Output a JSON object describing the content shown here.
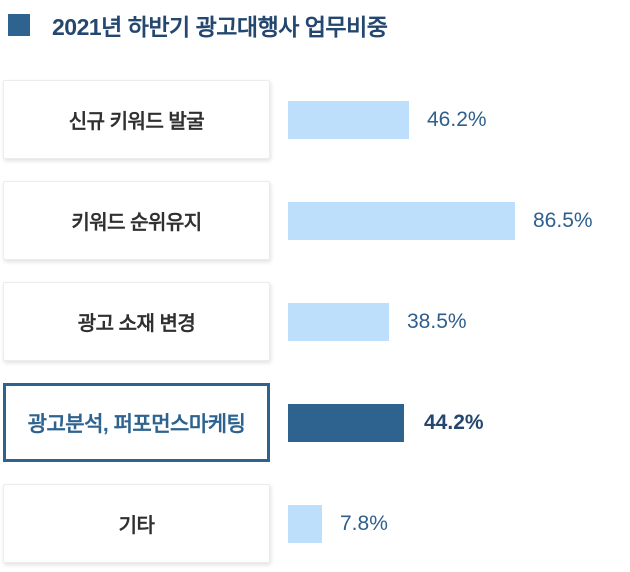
{
  "header": {
    "title": "2021년 하반기 광고대행사 업무비중"
  },
  "colors": {
    "accent_dark": "#2E6390",
    "bar_light": "#BDDFFB",
    "title_text": "#24476F",
    "value_text": "#2E5F8D",
    "label_text": "#303030"
  },
  "chart_data": {
    "type": "bar",
    "orientation": "horizontal",
    "title": "2021년 하반기 광고대행사 업무비중",
    "categories": [
      "신규 키워드 발굴",
      "키워드 순위유지",
      "광고 소재 변경",
      "광고분석, 퍼포먼스마케팅",
      "기타"
    ],
    "values": [
      46.2,
      86.5,
      38.5,
      44.2,
      7.8
    ],
    "value_labels": [
      "46.2%",
      "86.5%",
      "38.5%",
      "44.2%",
      "7.8%"
    ],
    "highlighted_index": 3,
    "highlighted_category": "광고분석, 퍼포먼스마케팅",
    "xlim": [
      0,
      100
    ],
    "grid": false,
    "legend": false,
    "value_label_position": "right-of-bar"
  }
}
